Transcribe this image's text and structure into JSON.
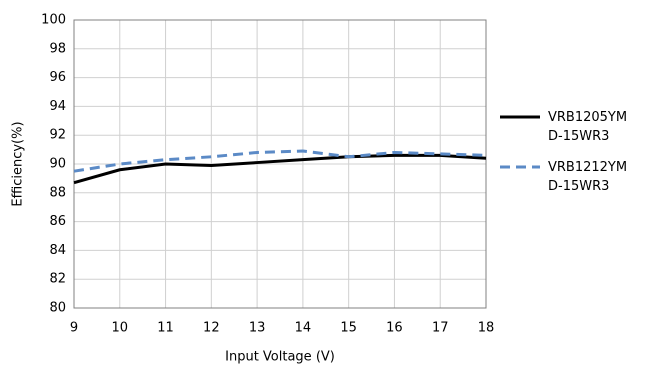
{
  "chart_data": {
    "type": "line",
    "xlabel": "Input Voltage (V)",
    "ylabel": "Efficiency(%)",
    "x": [
      9,
      10,
      11,
      12,
      13,
      14,
      15,
      16,
      17,
      18
    ],
    "series": [
      {
        "name": "VRB1205YMD-15WR3",
        "color": "#000000",
        "dash": false,
        "values": [
          88.7,
          89.6,
          90.0,
          89.9,
          90.1,
          90.3,
          90.5,
          90.6,
          90.6,
          90.4
        ]
      },
      {
        "name": "VRB1212YMD-15WR3",
        "color": "#5b8ac6",
        "dash": true,
        "values": [
          89.5,
          90.0,
          90.3,
          90.5,
          90.8,
          90.9,
          90.5,
          90.8,
          90.7,
          90.6
        ]
      }
    ],
    "xlim": [
      9,
      18
    ],
    "xticks": [
      9,
      10,
      11,
      12,
      13,
      14,
      15,
      16,
      17,
      18
    ],
    "ylim": [
      80,
      100
    ],
    "yticks": [
      80,
      82,
      84,
      86,
      88,
      90,
      92,
      94,
      96,
      98,
      100
    ],
    "grid": true,
    "legend": "right"
  }
}
